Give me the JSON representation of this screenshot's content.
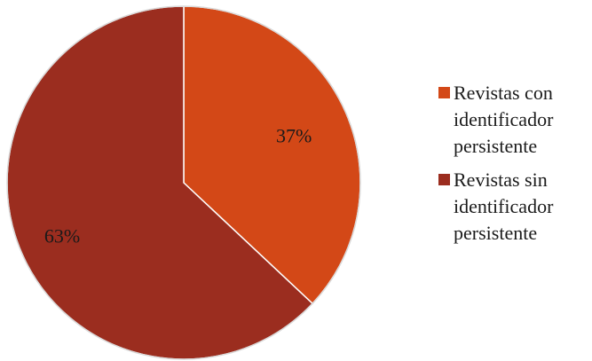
{
  "chart_data": {
    "type": "pie",
    "categories": [
      "Revistas con identificador persistente",
      "Revistas sin identificador persistente"
    ],
    "values": [
      37,
      63
    ],
    "labels": [
      "37%",
      "63%"
    ],
    "colors": [
      "#D34817",
      "#9B2D1F"
    ],
    "legend_position": "right"
  }
}
